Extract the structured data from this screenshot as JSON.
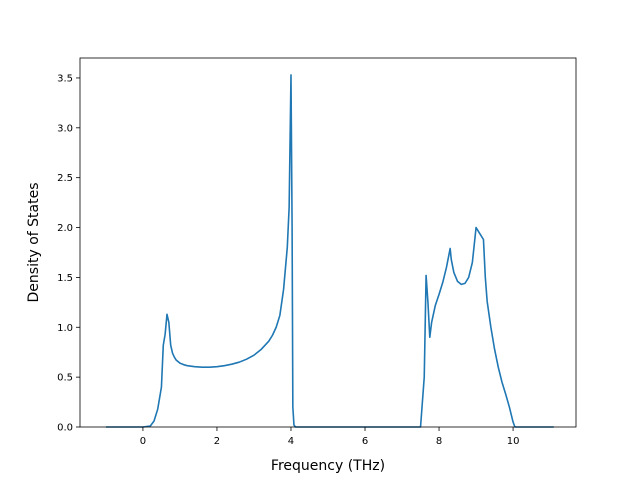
{
  "chart_data": {
    "type": "line",
    "title": "",
    "xlabel": "Frequency (THz)",
    "ylabel": "Density of States",
    "xlim": [
      -1.7,
      11.7
    ],
    "ylim": [
      0.0,
      3.7
    ],
    "x_ticks": [
      0,
      2,
      4,
      6,
      8,
      10
    ],
    "y_ticks": [
      0.0,
      0.5,
      1.0,
      1.5,
      2.0,
      2.5,
      3.0,
      3.5
    ],
    "x_tick_labels": [
      "0",
      "2",
      "4",
      "6",
      "8",
      "10"
    ],
    "y_tick_labels": [
      "0.0",
      "0.5",
      "1.0",
      "1.5",
      "2.0",
      "2.5",
      "3.0",
      "3.5"
    ],
    "grid": false,
    "line_color": "#1f77b4",
    "series": [
      {
        "x": [
          -1.0,
          0.0,
          0.2,
          0.3,
          0.4,
          0.5,
          0.55,
          0.6,
          0.65,
          0.7,
          0.75,
          0.8,
          0.85,
          0.9,
          1.0,
          1.1,
          1.2,
          1.4,
          1.6,
          1.8,
          2.0,
          2.2,
          2.4,
          2.6,
          2.8,
          3.0,
          3.2,
          3.4,
          3.5,
          3.6,
          3.7,
          3.8,
          3.9,
          3.95,
          4.0,
          4.03,
          4.05,
          4.08,
          4.12,
          4.15,
          4.3,
          5.0,
          6.0,
          7.0,
          7.5,
          7.6,
          7.65,
          7.7,
          7.75,
          7.8,
          7.9,
          8.0,
          8.1,
          8.2,
          8.3,
          8.33,
          8.4,
          8.5,
          8.6,
          8.7,
          8.8,
          8.9,
          9.0,
          9.05,
          9.1,
          9.2,
          9.25,
          9.3,
          9.4,
          9.5,
          9.6,
          9.7,
          9.8,
          9.9,
          10.0,
          10.05,
          10.1,
          10.3,
          10.6,
          11.1
        ],
        "y": [
          0.0,
          0.0,
          0.01,
          0.06,
          0.18,
          0.4,
          0.82,
          0.93,
          1.13,
          1.05,
          0.82,
          0.74,
          0.7,
          0.67,
          0.64,
          0.625,
          0.615,
          0.605,
          0.6,
          0.6,
          0.605,
          0.615,
          0.63,
          0.65,
          0.68,
          0.72,
          0.78,
          0.86,
          0.92,
          1.0,
          1.12,
          1.38,
          1.8,
          2.2,
          3.53,
          2.0,
          0.2,
          0.02,
          0.0,
          0.0,
          0.0,
          0.0,
          0.0,
          0.0,
          0.0,
          0.5,
          1.52,
          1.25,
          0.9,
          1.05,
          1.22,
          1.33,
          1.45,
          1.6,
          1.79,
          1.68,
          1.55,
          1.46,
          1.43,
          1.44,
          1.5,
          1.65,
          2.0,
          1.97,
          1.94,
          1.88,
          1.5,
          1.26,
          1.0,
          0.78,
          0.6,
          0.45,
          0.33,
          0.2,
          0.05,
          0.0,
          0.0,
          0.0,
          0.0,
          0.0
        ]
      }
    ]
  }
}
